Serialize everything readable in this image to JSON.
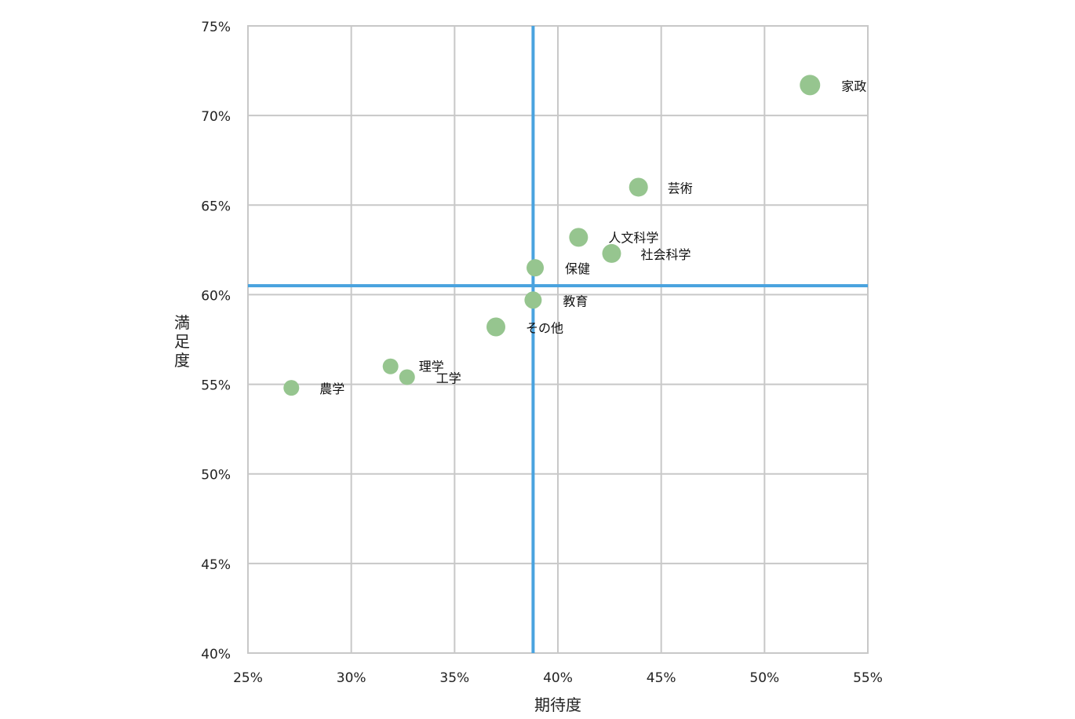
{
  "chart_data": {
    "type": "scatter",
    "title": "",
    "xlabel": "期待度",
    "ylabel": "満足度",
    "xlim": [
      0.25,
      0.55
    ],
    "ylim": [
      0.4,
      0.75
    ],
    "x_ticks": [
      0.25,
      0.3,
      0.35,
      0.4,
      0.45,
      0.5,
      0.55
    ],
    "y_ticks": [
      0.4,
      0.45,
      0.5,
      0.55,
      0.6,
      0.65,
      0.7,
      0.75
    ],
    "x_tick_labels": [
      "25%",
      "30%",
      "35%",
      "40%",
      "45%",
      "50%",
      "55%"
    ],
    "y_tick_labels": [
      "40%",
      "45%",
      "50%",
      "55%",
      "60%",
      "65%",
      "70%",
      "75%"
    ],
    "grid": true,
    "legend": "none",
    "reference_lines": {
      "x": 0.388,
      "y": 0.605,
      "color": "#4aa3df"
    },
    "point_color": "#96c58f",
    "points": [
      {
        "label": "家政",
        "x": 0.522,
        "y": 0.717
      },
      {
        "label": "芸術",
        "x": 0.439,
        "y": 0.66
      },
      {
        "label": "人文科学",
        "x": 0.41,
        "y": 0.632
      },
      {
        "label": "社会科学",
        "x": 0.426,
        "y": 0.623
      },
      {
        "label": "保健",
        "x": 0.389,
        "y": 0.615
      },
      {
        "label": "教育",
        "x": 0.388,
        "y": 0.597
      },
      {
        "label": "その他",
        "x": 0.37,
        "y": 0.582
      },
      {
        "label": "理学",
        "x": 0.319,
        "y": 0.56
      },
      {
        "label": "工学",
        "x": 0.327,
        "y": 0.554
      },
      {
        "label": "農学",
        "x": 0.271,
        "y": 0.548
      }
    ]
  }
}
